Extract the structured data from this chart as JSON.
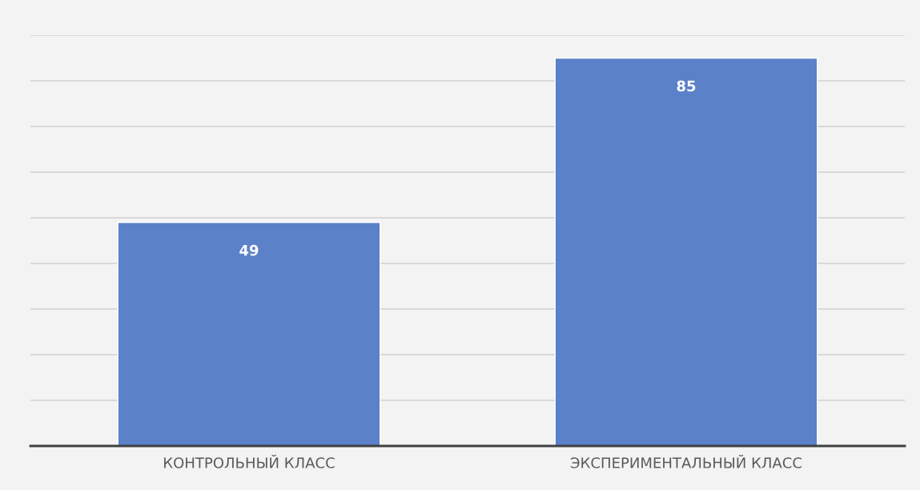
{
  "chart_data": {
    "type": "bar",
    "categories": [
      "КОНТРОЛЬНЫЙ КЛАСС",
      "ЭКСПЕРИМЕНТАЛЬНЫЙ КЛАСС"
    ],
    "values": [
      49,
      85
    ],
    "color": "#5b81c9",
    "ylim": [
      0,
      90
    ],
    "yticks": [
      {
        "value": 0,
        "label": null
      },
      {
        "value": 10,
        "label": null
      },
      {
        "value": 20,
        "label": null
      },
      {
        "value": 30,
        "label": null
      },
      {
        "value": 40,
        "label": null
      },
      {
        "value": 50,
        "label": null
      },
      {
        "value": 60,
        "label": null
      },
      {
        "value": 70,
        "label": null
      },
      {
        "value": 80,
        "label": null
      },
      {
        "value": 90,
        "label": null
      }
    ],
    "grid": "y",
    "data_labels": true,
    "tick_labels": "x"
  }
}
